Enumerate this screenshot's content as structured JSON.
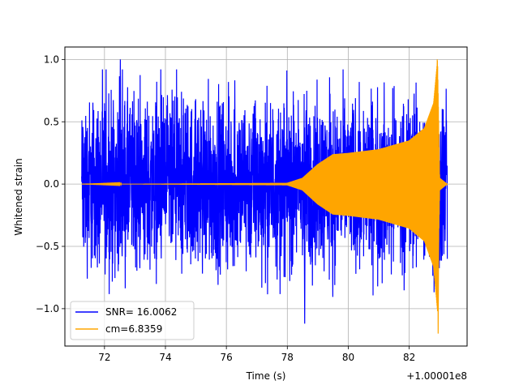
{
  "chart_data": {
    "type": "line",
    "xlabel": "Time (s)",
    "ylabel": "Whitened strain",
    "x_offset_label": "+1.00001e8",
    "xlim": [
      70.7,
      83.9
    ],
    "ylim": [
      -1.3,
      1.1
    ],
    "xticks": [
      72,
      74,
      76,
      78,
      80,
      82
    ],
    "yticks": [
      1.0,
      0.5,
      0.0,
      -0.5,
      -1.0
    ],
    "xtick_labels": [
      "72",
      "74",
      "76",
      "78",
      "80",
      "82"
    ],
    "ytick_labels": [
      "1.0",
      "0.5",
      "0.0",
      "−0.5",
      "−1.0"
    ],
    "grid": true,
    "legend_position": "lower-left",
    "series": [
      {
        "name": "SNR= 16.0062",
        "color": "#0000ff",
        "style": "noise",
        "x_range": [
          71.25,
          83.25
        ],
        "amplitude_typical": 0.6,
        "peak_max": 1.0,
        "peak_min": -1.12
      },
      {
        "name": "cm=6.8359",
        "color": "#ffa500",
        "style": "chirp",
        "x_range": [
          71.25,
          83.25
        ],
        "envelope": [
          {
            "t": 71.25,
            "a": 0.0
          },
          {
            "t": 78.0,
            "a": 0.01
          },
          {
            "t": 78.5,
            "a": 0.05
          },
          {
            "t": 79.0,
            "a": 0.16
          },
          {
            "t": 79.5,
            "a": 0.24
          },
          {
            "t": 80.0,
            "a": 0.25
          },
          {
            "t": 81.0,
            "a": 0.28
          },
          {
            "t": 82.0,
            "a": 0.35
          },
          {
            "t": 82.5,
            "a": 0.45
          },
          {
            "t": 82.8,
            "a": 0.65
          },
          {
            "t": 82.93,
            "a": 1.0
          },
          {
            "t": 83.0,
            "a": 0.05
          },
          {
            "t": 83.25,
            "a": 0.0
          }
        ],
        "peak_max": 1.0,
        "peak_min": -1.2
      }
    ]
  }
}
